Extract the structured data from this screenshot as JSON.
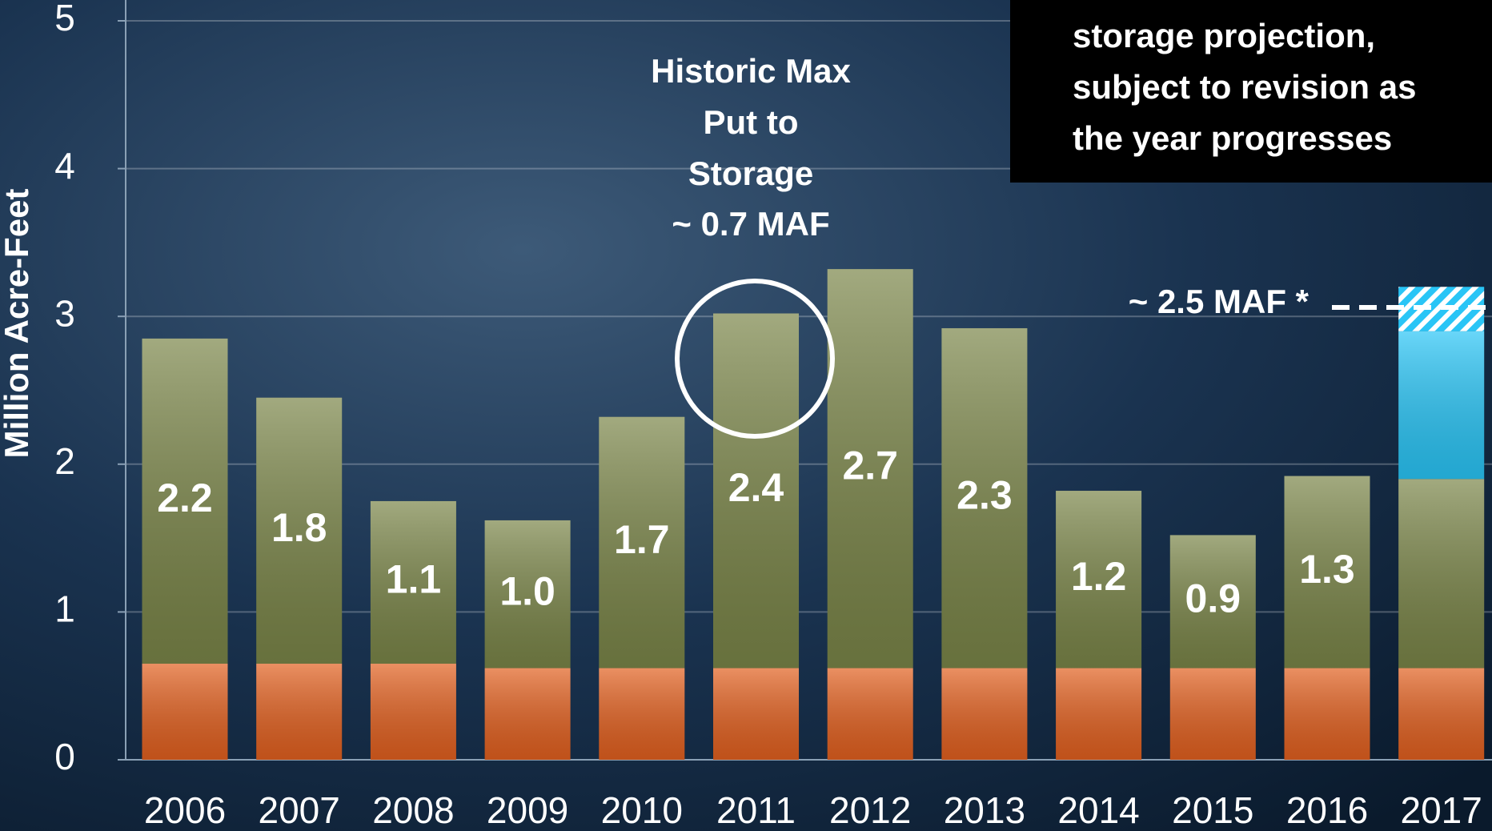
{
  "chart_data": {
    "type": "stacked_bar",
    "ylabel": "Million Acre-Feet",
    "categories": [
      "2006",
      "2007",
      "2008",
      "2009",
      "2010",
      "2011",
      "2012",
      "2013",
      "2014",
      "2015",
      "2016",
      "2017"
    ],
    "ylim": [
      0,
      5
    ],
    "yticks": [
      0,
      1,
      2,
      3,
      4,
      5
    ],
    "grid": true,
    "series": [
      {
        "color": "#e2601f",
        "values": [
          0.65,
          0.65,
          0.65,
          0.62,
          0.62,
          0.62,
          0.62,
          0.62,
          0.62,
          0.62,
          0.62,
          0.62
        ]
      },
      {
        "color": "#7a8548",
        "values": [
          2.2,
          1.8,
          1.1,
          1.0,
          1.7,
          2.4,
          2.7,
          2.3,
          1.2,
          0.9,
          1.3,
          1.28
        ],
        "value_labels": [
          "2.2",
          "1.8",
          "1.1",
          "1.0",
          "1.7",
          "2.4",
          "2.7",
          "2.3",
          "1.2",
          "0.9",
          "1.3",
          null
        ]
      },
      {
        "color": "#29c5f6",
        "values": [
          null,
          null,
          null,
          null,
          null,
          null,
          null,
          null,
          null,
          null,
          null,
          1.0
        ]
      },
      {
        "color": "#29c5f6",
        "hatch": true,
        "values": [
          null,
          null,
          null,
          null,
          null,
          null,
          null,
          null,
          null,
          null,
          null,
          0.3
        ]
      }
    ],
    "annotations": {
      "historic": [
        "Historic Max",
        "Put to",
        "Storage",
        "~ 0.7 MAF"
      ],
      "projection": "~ 2.5 MAF *",
      "note": [
        "storage projection,",
        "subject to revision as",
        "the year progresses"
      ]
    }
  }
}
